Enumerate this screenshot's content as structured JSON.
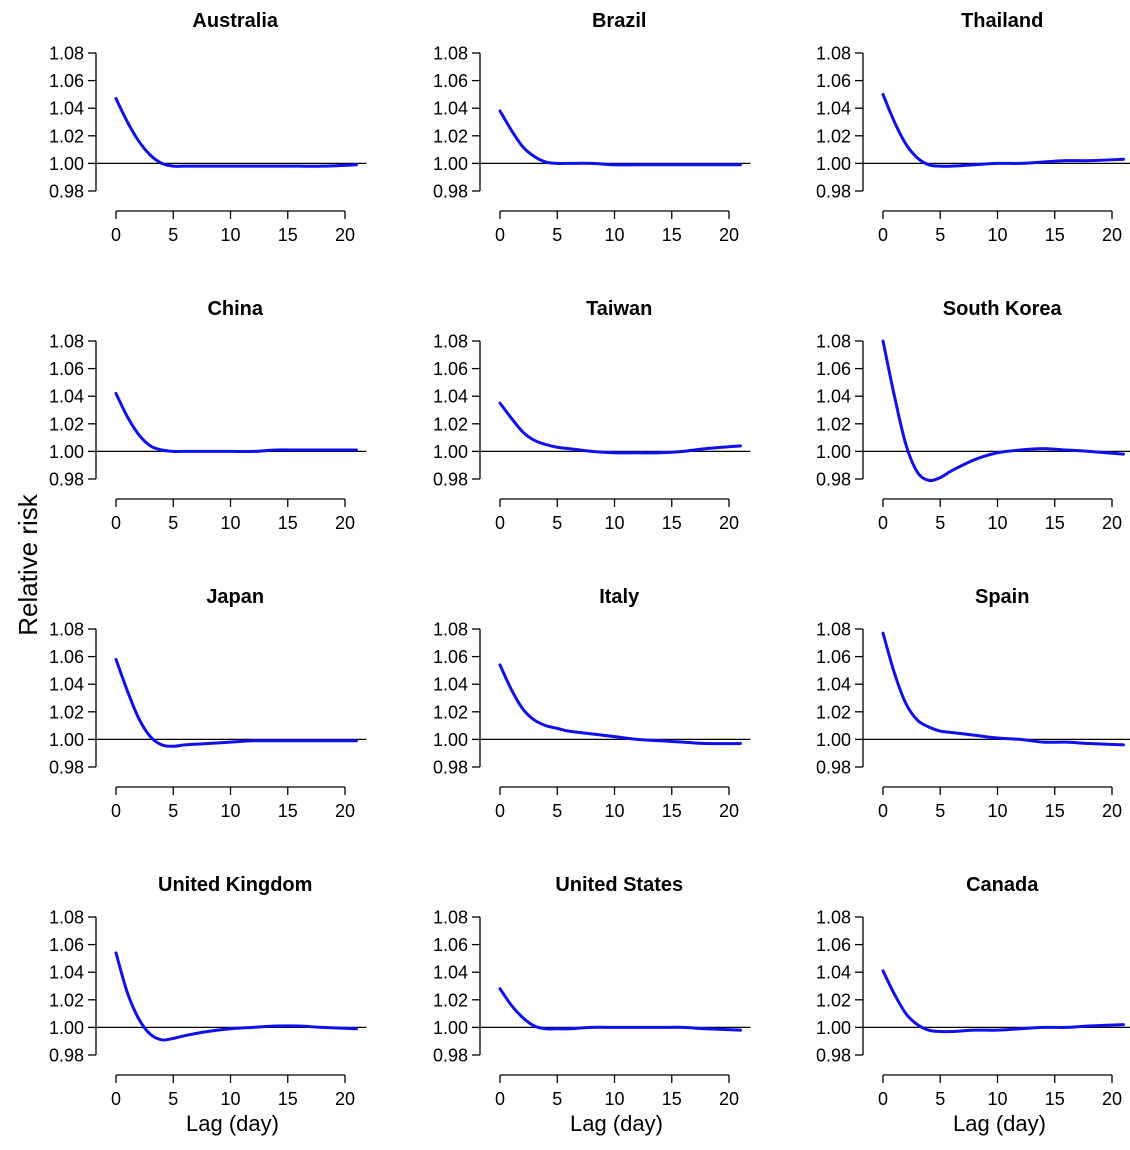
{
  "chart_data": {
    "type": "line",
    "ylabel": "Relative risk",
    "xlabel": "Lag (day)",
    "xlim": [
      0,
      21
    ],
    "ylim": [
      0.98,
      1.08
    ],
    "x_ticks": [
      0,
      5,
      10,
      15,
      20
    ],
    "x_tick_labels": [
      "0",
      "5",
      "10",
      "15",
      "20"
    ],
    "y_ticks": [
      0.98,
      1.0,
      1.02,
      1.04,
      1.06,
      1.08
    ],
    "y_tick_labels": [
      "0.98",
      "1.00",
      "1.02",
      "1.04",
      "1.06",
      "1.08"
    ],
    "reference_line": 1.0,
    "line_color": "#1010ee",
    "grid": false,
    "panels": [
      {
        "title": "Australia",
        "x": [
          0,
          1,
          2,
          3,
          4,
          5,
          6,
          8,
          10,
          12,
          14,
          16,
          18,
          21
        ],
        "y": [
          1.047,
          1.03,
          1.016,
          1.006,
          1.0,
          0.998,
          0.998,
          0.998,
          0.998,
          0.998,
          0.998,
          0.998,
          0.998,
          0.999
        ]
      },
      {
        "title": "Brazil",
        "x": [
          0,
          1,
          2,
          3,
          4,
          5,
          6,
          8,
          10,
          12,
          14,
          16,
          18,
          21
        ],
        "y": [
          1.038,
          1.024,
          1.012,
          1.005,
          1.001,
          1.0,
          1.0,
          1.0,
          0.999,
          0.999,
          0.999,
          0.999,
          0.999,
          0.999
        ]
      },
      {
        "title": "Thailand",
        "x": [
          0,
          1,
          2,
          3,
          4,
          5,
          6,
          8,
          10,
          12,
          14,
          16,
          18,
          21
        ],
        "y": [
          1.05,
          1.03,
          1.014,
          1.004,
          0.999,
          0.998,
          0.998,
          0.999,
          1.0,
          1.0,
          1.001,
          1.002,
          1.002,
          1.003
        ]
      },
      {
        "title": "China",
        "x": [
          0,
          1,
          2,
          3,
          4,
          5,
          6,
          8,
          10,
          12,
          14,
          16,
          18,
          21
        ],
        "y": [
          1.042,
          1.025,
          1.012,
          1.004,
          1.001,
          1.0,
          1.0,
          1.0,
          1.0,
          1.0,
          1.001,
          1.001,
          1.001,
          1.001
        ]
      },
      {
        "title": "Taiwan",
        "x": [
          0,
          1,
          2,
          3,
          4,
          5,
          6,
          8,
          10,
          12,
          14,
          16,
          18,
          21
        ],
        "y": [
          1.035,
          1.024,
          1.014,
          1.008,
          1.005,
          1.003,
          1.002,
          1.0,
          0.999,
          0.999,
          0.999,
          1.0,
          1.002,
          1.004
        ]
      },
      {
        "title": "South Korea",
        "x": [
          0,
          1,
          2,
          3,
          4,
          5,
          6,
          8,
          10,
          12,
          14,
          16,
          18,
          21
        ],
        "y": [
          1.08,
          1.04,
          1.005,
          0.985,
          0.979,
          0.981,
          0.986,
          0.994,
          0.999,
          1.001,
          1.002,
          1.001,
          1.0,
          0.998
        ]
      },
      {
        "title": "Japan",
        "x": [
          0,
          1,
          2,
          3,
          4,
          5,
          6,
          8,
          10,
          12,
          14,
          16,
          18,
          21
        ],
        "y": [
          1.058,
          1.035,
          1.015,
          1.002,
          0.996,
          0.995,
          0.996,
          0.997,
          0.998,
          0.999,
          0.999,
          0.999,
          0.999,
          0.999
        ]
      },
      {
        "title": "Italy",
        "x": [
          0,
          1,
          2,
          3,
          4,
          5,
          6,
          8,
          10,
          12,
          14,
          16,
          18,
          21
        ],
        "y": [
          1.054,
          1.036,
          1.022,
          1.014,
          1.01,
          1.008,
          1.006,
          1.004,
          1.002,
          1.0,
          0.999,
          0.998,
          0.997,
          0.997
        ]
      },
      {
        "title": "Spain",
        "x": [
          0,
          1,
          2,
          3,
          4,
          5,
          6,
          8,
          10,
          12,
          14,
          16,
          18,
          21
        ],
        "y": [
          1.077,
          1.048,
          1.026,
          1.014,
          1.009,
          1.006,
          1.005,
          1.003,
          1.001,
          1.0,
          0.998,
          0.998,
          0.997,
          0.996
        ]
      },
      {
        "title": "United Kingdom",
        "x": [
          0,
          1,
          2,
          3,
          4,
          5,
          6,
          8,
          10,
          12,
          14,
          16,
          18,
          21
        ],
        "y": [
          1.054,
          1.025,
          1.006,
          0.995,
          0.991,
          0.992,
          0.994,
          0.997,
          0.999,
          1.0,
          1.001,
          1.001,
          1.0,
          0.999
        ]
      },
      {
        "title": "United States",
        "x": [
          0,
          1,
          2,
          3,
          4,
          5,
          6,
          8,
          10,
          12,
          14,
          16,
          18,
          21
        ],
        "y": [
          1.028,
          1.016,
          1.007,
          1.001,
          0.999,
          0.999,
          0.999,
          1.0,
          1.0,
          1.0,
          1.0,
          1.0,
          0.999,
          0.998
        ]
      },
      {
        "title": "Canada",
        "x": [
          0,
          1,
          2,
          3,
          4,
          5,
          6,
          8,
          10,
          12,
          14,
          16,
          18,
          21
        ],
        "y": [
          1.041,
          1.024,
          1.01,
          1.002,
          0.998,
          0.997,
          0.997,
          0.998,
          0.998,
          0.999,
          1.0,
          1.0,
          1.001,
          1.002
        ]
      }
    ]
  }
}
